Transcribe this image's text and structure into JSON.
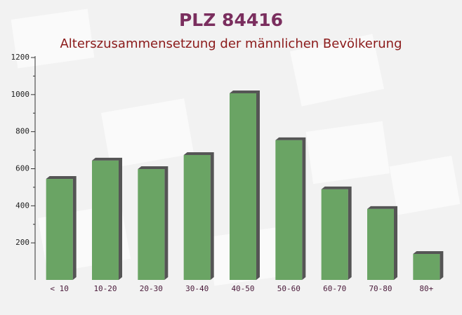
{
  "chart_data": {
    "type": "bar",
    "title": "PLZ 84416",
    "subtitle": "Alterszusammensetzung der männlichen Bevölkerung",
    "categories": [
      "< 10",
      "10-20",
      "20-30",
      "30-40",
      "40-50",
      "50-60",
      "60-70",
      "70-80",
      "80+"
    ],
    "values": [
      545,
      644,
      598,
      674,
      1007,
      754,
      489,
      383,
      140
    ],
    "color": "#6aa464",
    "ylim": [
      0,
      1200
    ],
    "yticks": [
      200,
      400,
      600,
      800,
      1000,
      1200
    ]
  }
}
